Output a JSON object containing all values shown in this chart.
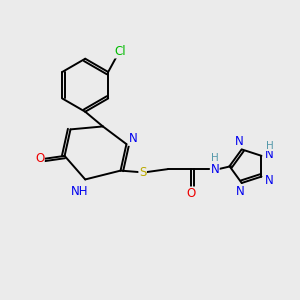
{
  "background_color": "#ebebeb",
  "atom_colors": {
    "C": "#000000",
    "N": "#0000ee",
    "O": "#ee0000",
    "S": "#bbaa00",
    "Cl": "#00bb00",
    "H": "#5599aa"
  },
  "bond_color": "#000000",
  "bond_width": 1.4,
  "font_size": 8.5
}
